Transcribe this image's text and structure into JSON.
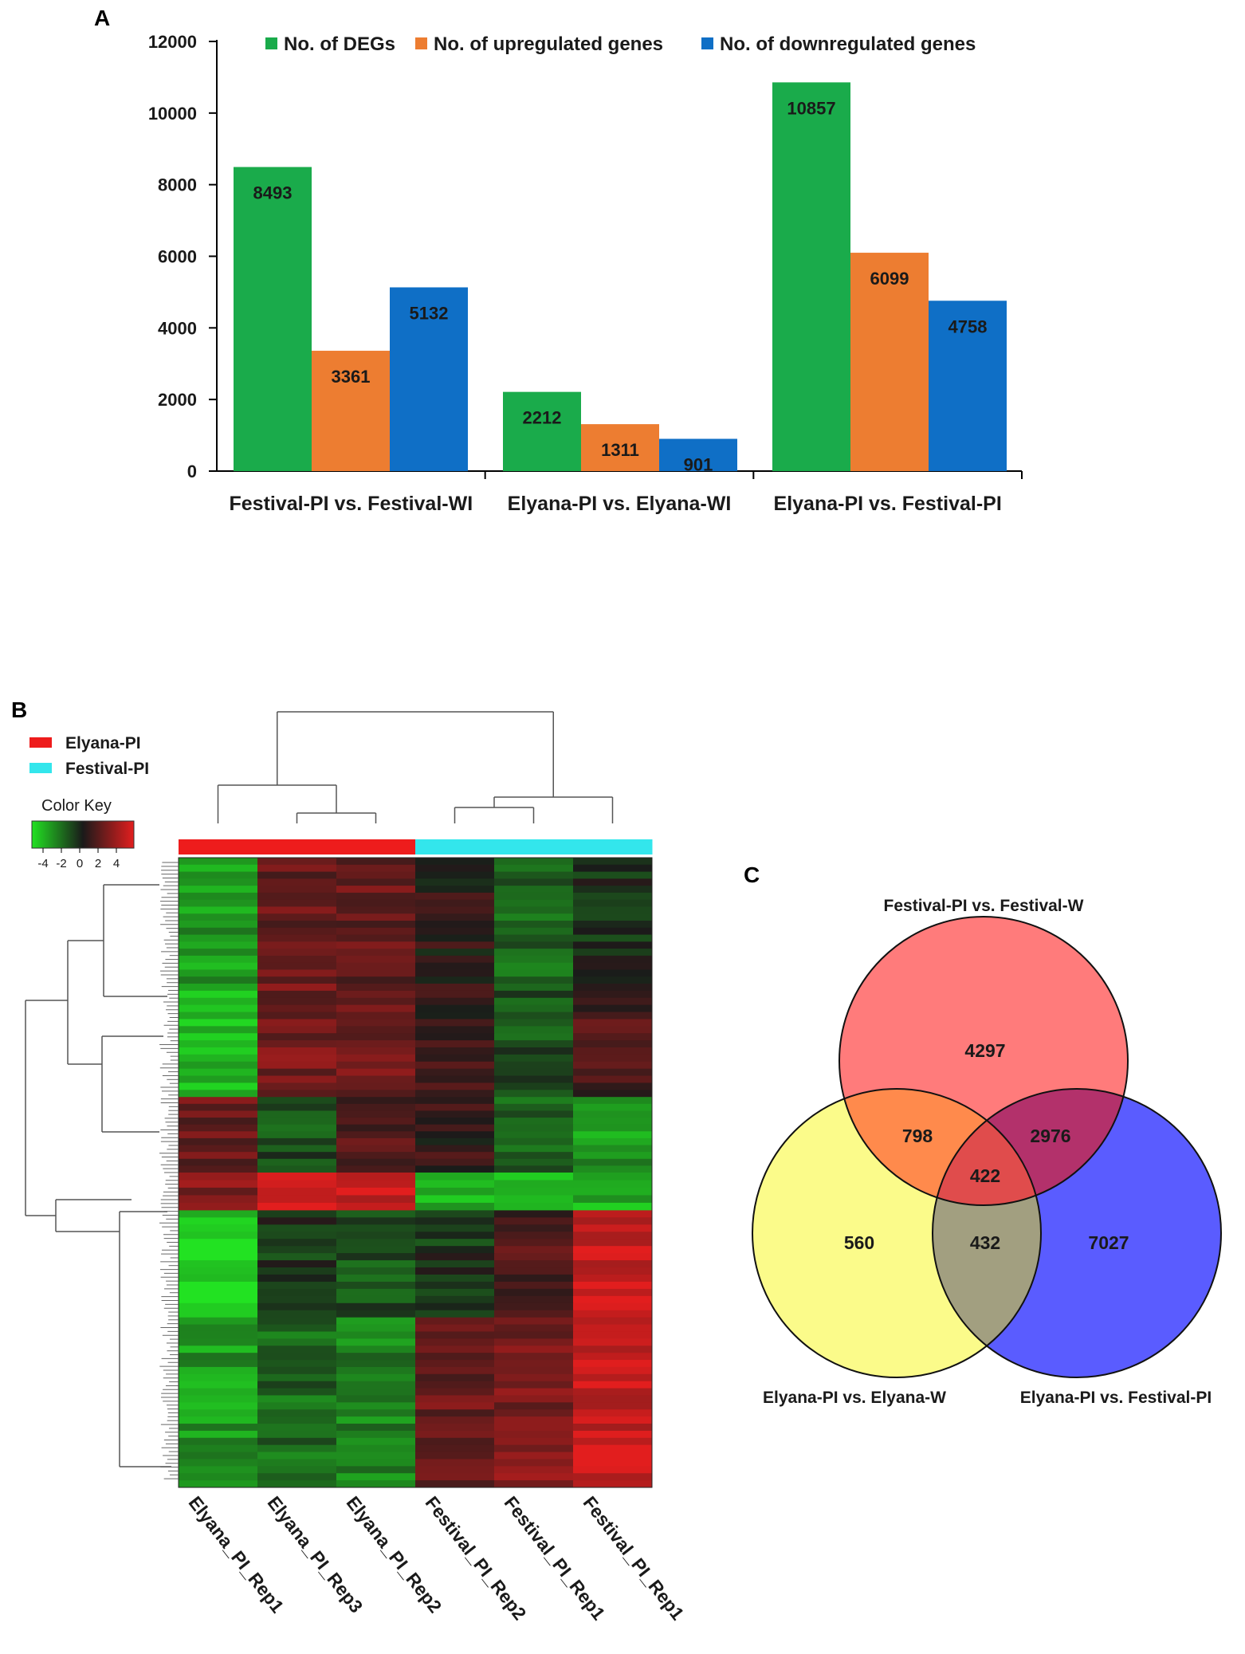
{
  "panels": {
    "a": "A",
    "b": "B",
    "c": "C"
  },
  "chart_data": [
    {
      "type": "bar",
      "title": "",
      "categories": [
        "Festival-PI vs. Festival-WI",
        "Elyana-PI vs. Elyana-WI",
        "Elyana-PI vs. Festival-PI"
      ],
      "series": [
        {
          "name": "No. of DEGs",
          "color": "#1aab4b",
          "values": [
            8493,
            2212,
            10857
          ]
        },
        {
          "name": "No. of upregulated genes",
          "color": "#ed7d31",
          "values": [
            3361,
            1311,
            6099
          ]
        },
        {
          "name": "No. of downregulated genes",
          "color": "#0f6fc6",
          "values": [
            5132,
            901,
            4758
          ]
        }
      ],
      "xlabel": "",
      "ylabel": "",
      "ylim": [
        0,
        12000
      ],
      "yticks": [
        0,
        2000,
        4000,
        6000,
        8000,
        10000,
        12000
      ],
      "legend": "top",
      "grid": false
    },
    {
      "type": "heatmap",
      "title": "",
      "groups": [
        {
          "name": "Elyana-PI",
          "color": "#ee1c1c"
        },
        {
          "name": "Festival-PI",
          "color": "#33e6ec"
        }
      ],
      "color_key": {
        "title": "Color Key",
        "ticks": [
          "-4",
          "-2",
          "0",
          "2",
          "4"
        ],
        "low_color": "#22e222",
        "mid_color": "#1a1a1a",
        "high_color": "#e21e1e"
      },
      "columns": [
        "Elyana_PI_Rep1",
        "Elyana_PI_Rep3",
        "Elyana_PI_Rep2",
        "Festival_PI_Rep2",
        "Festival_PI_Rep1",
        "Festival_PI_Rep1"
      ],
      "column_groups": [
        "Elyana-PI",
        "Elyana-PI",
        "Elyana-PI",
        "Festival-PI",
        "Festival-PI",
        "Festival-PI"
      ],
      "row_blocks": [
        {
          "values": [
            -2.5,
            1.5,
            1.5,
            0.3,
            -1.5,
            -0.5
          ]
        },
        {
          "values": [
            -3.0,
            1.8,
            1.6,
            0.5,
            -1.0,
            1.0
          ]
        },
        {
          "values": [
            1.5,
            -1.0,
            1.2,
            0.5,
            -1.5,
            -2.5
          ]
        },
        {
          "values": [
            2.0,
            3.5,
            3.5,
            -3.0,
            -3.0,
            -3.0
          ]
        },
        {
          "values": [
            -3.5,
            -0.5,
            -1.0,
            -0.5,
            1.0,
            3.5
          ]
        },
        {
          "values": [
            -2.5,
            -1.5,
            -2.0,
            1.5,
            2.0,
            3.5
          ]
        }
      ]
    },
    {
      "type": "venn",
      "sets": [
        {
          "name": "Festival-PI vs. Festival-W",
          "color": "#ff7b7b"
        },
        {
          "name": "Elyana-PI vs. Elyana-W",
          "color": "#fbfb8a"
        },
        {
          "name": "Elyana-PI vs. Festival-PI",
          "color": "#5a5cff"
        }
      ],
      "regions": {
        "festival_only": "4297",
        "elyana_only": "560",
        "comparison_only": "7027",
        "festival_elyana": "798",
        "festival_comparison": "2976",
        "elyana_comparison": "432",
        "all_three": "422"
      }
    }
  ]
}
